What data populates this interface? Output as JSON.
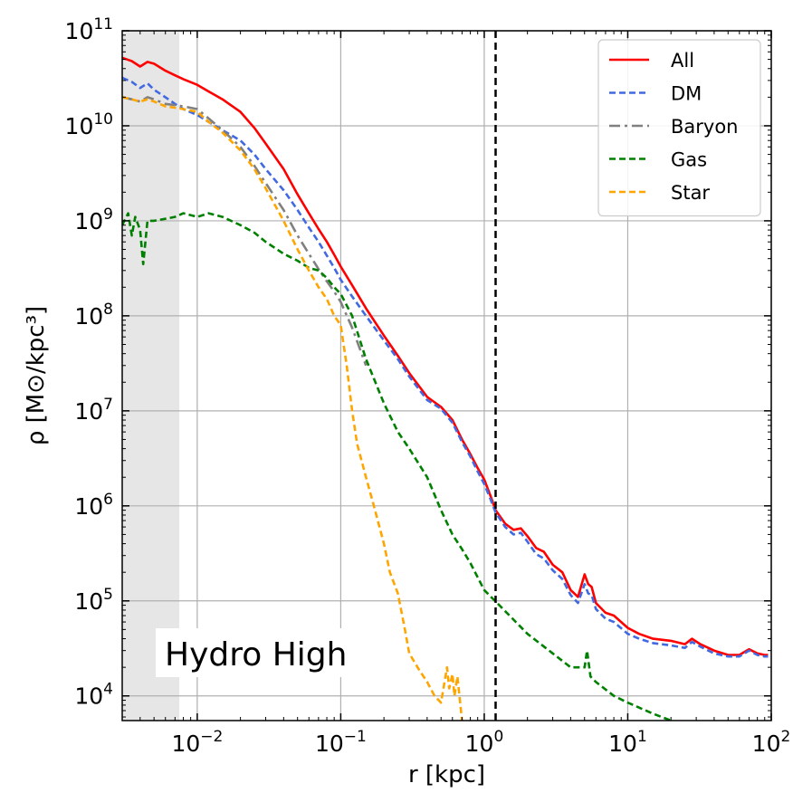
{
  "chart_data": {
    "type": "line",
    "xlabel": "r [kpc]",
    "ylabel": "ρ [M⊙/kpc³]",
    "xscale": "log",
    "yscale": "log",
    "xlim": [
      0.003,
      100
    ],
    "ylim": [
      5500,
      100000000000
    ],
    "grid": true,
    "legend_position": "top-right",
    "annotation": "Hydro High",
    "shaded_region": {
      "x_min": 0.003,
      "x_max": 0.0075,
      "color": "#e6e6e6"
    },
    "vline": {
      "x": 1.2,
      "style": "dashed",
      "color": "#000000"
    },
    "x_ticks": [
      {
        "value": 0.01,
        "base": "10",
        "exp": "−2"
      },
      {
        "value": 0.1,
        "base": "10",
        "exp": "−1"
      },
      {
        "value": 1,
        "base": "10",
        "exp": "0"
      },
      {
        "value": 10,
        "base": "10",
        "exp": "1"
      },
      {
        "value": 100,
        "base": "10",
        "exp": "2"
      }
    ],
    "y_ticks": [
      {
        "value": 10000,
        "base": "10",
        "exp": "4"
      },
      {
        "value": 100000,
        "base": "10",
        "exp": "5"
      },
      {
        "value": 1000000,
        "base": "10",
        "exp": "6"
      },
      {
        "value": 10000000,
        "base": "10",
        "exp": "7"
      },
      {
        "value": 100000000,
        "base": "10",
        "exp": "8"
      },
      {
        "value": 1000000000,
        "base": "10",
        "exp": "9"
      },
      {
        "value": 10000000000,
        "base": "10",
        "exp": "10"
      },
      {
        "value": 100000000000,
        "base": "10",
        "exp": "11"
      }
    ],
    "series": [
      {
        "name": "All",
        "color": "#ff0000",
        "dash": "solid",
        "x": [
          0.003,
          0.0035,
          0.004,
          0.0045,
          0.005,
          0.006,
          0.007,
          0.008,
          0.01,
          0.012,
          0.015,
          0.02,
          0.025,
          0.03,
          0.04,
          0.05,
          0.06,
          0.07,
          0.08,
          0.09,
          0.1,
          0.12,
          0.15,
          0.2,
          0.25,
          0.3,
          0.4,
          0.5,
          0.6,
          0.7,
          0.8,
          0.9,
          1.0,
          1.1,
          1.2,
          1.4,
          1.6,
          1.8,
          2.0,
          2.3,
          2.6,
          3.0,
          3.5,
          4.0,
          4.5,
          5.0,
          5.3,
          5.6,
          6.0,
          7.0,
          8.0,
          10,
          12,
          15,
          20,
          25,
          28,
          32,
          40,
          50,
          60,
          70,
          80,
          90,
          95
        ],
        "y": [
          52000000000,
          48000000000,
          42000000000,
          47000000000,
          45000000000,
          38000000000,
          34000000000,
          31000000000,
          27000000000,
          23000000000,
          19000000000,
          14000000000,
          9500000000,
          6500000000,
          3500000000,
          1900000000,
          1200000000,
          820000000,
          600000000,
          440000000,
          330000000,
          210000000,
          120000000,
          62000000,
          38000000,
          25000000,
          14000000,
          11000000,
          8000000,
          5000000,
          3500000,
          2500000,
          1900000,
          1300000,
          900000,
          650000,
          560000,
          580000,
          480000,
          360000,
          330000,
          240000,
          200000,
          130000,
          110000,
          190000,
          150000,
          140000,
          95000,
          75000,
          70000,
          52000,
          45000,
          40000,
          38000,
          35000,
          40000,
          35000,
          30000,
          27000,
          27000,
          31000,
          28000,
          27000,
          27000
        ]
      },
      {
        "name": "DM",
        "color": "#4169e1",
        "dash": "dashed",
        "x": [
          0.003,
          0.0035,
          0.004,
          0.0045,
          0.005,
          0.006,
          0.007,
          0.008,
          0.01,
          0.012,
          0.015,
          0.02,
          0.025,
          0.03,
          0.04,
          0.05,
          0.06,
          0.07,
          0.08,
          0.09,
          0.1,
          0.12,
          0.15,
          0.2,
          0.25,
          0.3,
          0.4,
          0.5,
          0.6,
          0.7,
          0.8,
          0.9,
          1.0,
          1.1,
          1.2,
          1.4,
          1.6,
          1.8,
          2.0,
          2.3,
          2.6,
          3.0,
          3.5,
          4.0,
          4.5,
          5.0,
          5.3,
          5.6,
          6.0,
          7.0,
          8.0,
          10,
          12,
          15,
          20,
          25,
          28,
          32,
          40,
          50,
          60,
          70,
          80,
          90,
          95
        ],
        "y": [
          32000000000,
          29000000000,
          25000000000,
          28000000000,
          24000000000,
          20000000000,
          17000000000,
          15000000000,
          13000000000,
          11000000000,
          9000000000,
          7000000000,
          5000000000,
          3500000000,
          2100000000,
          1300000000,
          850000000,
          600000000,
          430000000,
          320000000,
          240000000,
          160000000,
          100000000,
          55000000,
          35000000,
          23000000,
          13000000,
          10500000,
          7500000,
          4700000,
          3300000,
          2300000,
          1700000,
          1200000,
          850000,
          600000,
          500000,
          520000,
          420000,
          310000,
          280000,
          210000,
          170000,
          115000,
          95000,
          150000,
          120000,
          115000,
          82000,
          65000,
          60000,
          45000,
          40000,
          36000,
          34000,
          32000,
          37000,
          33000,
          28000,
          26000,
          26000,
          30000,
          27000,
          26000,
          26000
        ]
      },
      {
        "name": "Baryon",
        "color": "#808080",
        "dash": "dashdot",
        "x": [
          0.003,
          0.0035,
          0.004,
          0.0045,
          0.005,
          0.006,
          0.007,
          0.008,
          0.01,
          0.012,
          0.015,
          0.02,
          0.025,
          0.03,
          0.04,
          0.05,
          0.06,
          0.07,
          0.08,
          0.09,
          0.1,
          0.12,
          0.15
        ],
        "y": [
          20000000000,
          19000000000,
          18000000000,
          20000000000,
          19000000000,
          17000000000,
          16500000000,
          16000000000,
          15000000000,
          12000000000,
          9000000000,
          6000000000,
          3800000000,
          2500000000,
          1300000000,
          700000000,
          450000000,
          310000000,
          230000000,
          180000000,
          140000000,
          75000000,
          30000000
        ]
      },
      {
        "name": "Gas",
        "color": "#008000",
        "dash": "dashed",
        "x": [
          0.003,
          0.0033,
          0.0035,
          0.0037,
          0.004,
          0.0042,
          0.0045,
          0.005,
          0.006,
          0.007,
          0.008,
          0.01,
          0.012,
          0.015,
          0.02,
          0.025,
          0.03,
          0.04,
          0.05,
          0.06,
          0.07,
          0.08,
          0.09,
          0.1,
          0.12,
          0.15,
          0.2,
          0.25,
          0.3,
          0.4,
          0.5,
          0.6,
          0.7,
          0.8,
          1.0,
          1.5,
          2.0,
          3.0,
          4.0,
          5.0,
          5.2,
          5.5,
          6.0,
          8.0,
          10,
          15,
          20
        ],
        "y": [
          900000000,
          1200000000,
          700000000,
          1100000000,
          800000000,
          350000000,
          1000000000,
          1000000000,
          1050000000,
          1100000000,
          1200000000,
          1100000000,
          1200000000,
          1100000000,
          900000000,
          750000000,
          600000000,
          450000000,
          380000000,
          320000000,
          300000000,
          250000000,
          200000000,
          170000000,
          100000000,
          35000000,
          12000000,
          6000000,
          4000000,
          2000000,
          900000,
          500000,
          350000,
          250000,
          130000,
          70000,
          45000,
          28000,
          20000,
          20000,
          30000,
          16000,
          14000,
          10000,
          8500,
          6500,
          5500
        ]
      },
      {
        "name": "Star",
        "color": "#ffa500",
        "dash": "dashed",
        "x": [
          0.003,
          0.0035,
          0.004,
          0.0045,
          0.005,
          0.006,
          0.007,
          0.008,
          0.01,
          0.012,
          0.015,
          0.02,
          0.025,
          0.03,
          0.04,
          0.05,
          0.06,
          0.07,
          0.08,
          0.09,
          0.1,
          0.11,
          0.12,
          0.13,
          0.15,
          0.17,
          0.2,
          0.22,
          0.25,
          0.28,
          0.3,
          0.35,
          0.4,
          0.45,
          0.5,
          0.55,
          0.57,
          0.6,
          0.62,
          0.65,
          0.7
        ],
        "y": [
          20000000000,
          19000000000,
          18000000000,
          19000000000,
          18000000000,
          16000000000,
          15500000000,
          15000000000,
          14000000000,
          11000000000,
          8500000000,
          5500000000,
          3500000000,
          2200000000,
          1000000000,
          500000000,
          300000000,
          200000000,
          150000000,
          100000000,
          80000000,
          30000000,
          10000000,
          4500000,
          2000000,
          1000000,
          400000,
          200000,
          120000,
          50000,
          28000,
          19000,
          14000,
          10000,
          8500,
          20000,
          12000,
          17000,
          10000,
          16000,
          5500
        ]
      }
    ]
  }
}
